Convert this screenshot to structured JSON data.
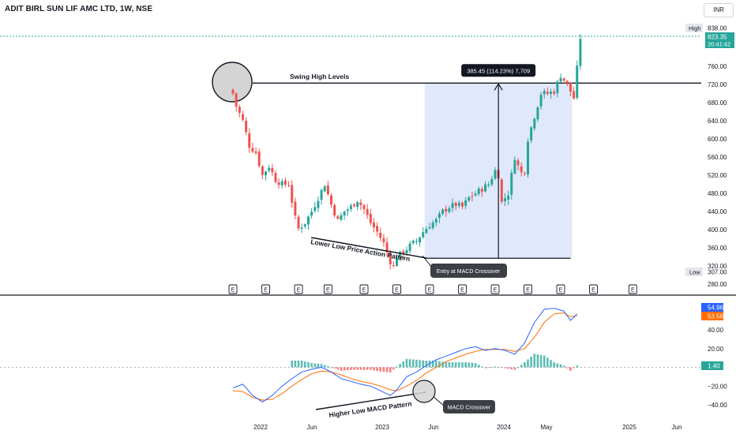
{
  "header": {
    "symbol_title": "ADIT BIRL SUN LIF AMC LTD, 1W, NSE",
    "currency": "INR"
  },
  "price_axis": {
    "ticks": [
      "760.00",
      "720.00",
      "680.00",
      "640.00",
      "600.00",
      "560.00",
      "520.00",
      "480.00",
      "440.00",
      "400.00",
      "360.00",
      "320.00",
      "280.00"
    ],
    "high_label": "High",
    "high_value": "838.00",
    "last_price": "823.35",
    "countdown": "20:41:42",
    "low_label": "Low",
    "low_value": "307.00"
  },
  "macd_axis": {
    "ticks": [
      "40.00",
      "20.00",
      "−20.00",
      "−40.00"
    ],
    "macd_value": "54.96",
    "signal_value": "53.56",
    "hist_value": "1.40"
  },
  "time_axis": [
    "2022",
    "Jun",
    "2023",
    "Jun",
    "2024",
    "May",
    "2025",
    "Jun"
  ],
  "annotations": {
    "swing_high": "Swing High Levels",
    "measure": "385.45 (114.23%) 7,709",
    "lower_low": "Lower Low Price Action Pattern",
    "entry": "Entry at MACD Crossover",
    "higher_low": "Higher Low MACD Pattern",
    "macd_cross": "MACD Crossover"
  },
  "events": [
    {
      "x_week": 0,
      "glyph": "E"
    },
    {
      "x_week": 10,
      "glyph": "E"
    },
    {
      "x_week": 20,
      "glyph": "E"
    },
    {
      "x_week": 29,
      "glyph": "E"
    },
    {
      "x_week": 40,
      "glyph": "E"
    },
    {
      "x_week": 50,
      "glyph": "E"
    },
    {
      "x_week": 60,
      "glyph": "E"
    },
    {
      "x_week": 70,
      "glyph": "E"
    },
    {
      "x_week": 80,
      "glyph": "E"
    },
    {
      "x_week": 90,
      "glyph": "E"
    },
    {
      "x_week": 100,
      "glyph": "E"
    },
    {
      "x_week": 110,
      "glyph": "E"
    },
    {
      "x_week": 122,
      "glyph": "E"
    }
  ],
  "colors": {
    "up": "#26a69a",
    "down": "#ef5350",
    "macd": "#2962ff",
    "signal": "#ff6d00",
    "measure_fill": "#dbe4fb",
    "level": "#131722"
  },
  "chart_data": [
    {
      "type": "candlestick",
      "title": "ADIT BIRL SUN LIF AMC LTD, 1W, NSE",
      "y_unit": "INR",
      "ylim": [
        280,
        840
      ],
      "x_range": [
        "2022",
        "2025 Jun"
      ],
      "swing_high_level": 723,
      "low_point": 307,
      "high_point": 838,
      "last_close": 823.35,
      "measurement": {
        "from": 337,
        "to": 723,
        "change": 385.45,
        "change_pct": 114.23
      },
      "close_path": [
        {
          "week": 0,
          "close": 700
        },
        {
          "week": 1,
          "close": 672
        },
        {
          "week": 3,
          "close": 640
        },
        {
          "week": 5,
          "close": 585
        },
        {
          "week": 7,
          "close": 570
        },
        {
          "week": 9,
          "close": 520
        },
        {
          "week": 11,
          "close": 540
        },
        {
          "week": 13,
          "close": 510
        },
        {
          "week": 15,
          "close": 500
        },
        {
          "week": 17,
          "close": 500
        },
        {
          "week": 19,
          "close": 425
        },
        {
          "week": 20,
          "close": 402
        },
        {
          "week": 22,
          "close": 415
        },
        {
          "week": 24,
          "close": 440
        },
        {
          "week": 26,
          "close": 470
        },
        {
          "week": 28,
          "close": 500
        },
        {
          "week": 30,
          "close": 455
        },
        {
          "week": 32,
          "close": 420
        },
        {
          "week": 34,
          "close": 440
        },
        {
          "week": 36,
          "close": 450
        },
        {
          "week": 38,
          "close": 465
        },
        {
          "week": 40,
          "close": 445
        },
        {
          "week": 42,
          "close": 415
        },
        {
          "week": 44,
          "close": 395
        },
        {
          "week": 46,
          "close": 370
        },
        {
          "week": 48,
          "close": 330
        },
        {
          "week": 49,
          "close": 318
        },
        {
          "week": 50,
          "close": 340
        },
        {
          "week": 52,
          "close": 350
        },
        {
          "week": 54,
          "close": 365
        },
        {
          "week": 56,
          "close": 375
        },
        {
          "week": 58,
          "close": 395
        },
        {
          "week": 60,
          "close": 410
        },
        {
          "week": 62,
          "close": 420
        },
        {
          "week": 64,
          "close": 440
        },
        {
          "week": 66,
          "close": 450
        },
        {
          "week": 68,
          "close": 455
        },
        {
          "week": 70,
          "close": 450
        },
        {
          "week": 72,
          "close": 470
        },
        {
          "week": 74,
          "close": 480
        },
        {
          "week": 76,
          "close": 490
        },
        {
          "week": 78,
          "close": 500
        },
        {
          "week": 80,
          "close": 530
        },
        {
          "week": 81,
          "close": 520
        },
        {
          "week": 82,
          "close": 460
        },
        {
          "week": 84,
          "close": 480
        },
        {
          "week": 86,
          "close": 560
        },
        {
          "week": 87,
          "close": 540
        },
        {
          "week": 88,
          "close": 525
        },
        {
          "week": 89,
          "close": 530
        },
        {
          "week": 90,
          "close": 600
        },
        {
          "week": 92,
          "close": 650
        },
        {
          "week": 94,
          "close": 700
        },
        {
          "week": 96,
          "close": 700
        },
        {
          "week": 98,
          "close": 705
        },
        {
          "week": 100,
          "close": 740
        },
        {
          "week": 102,
          "close": 720
        },
        {
          "week": 104,
          "close": 690
        },
        {
          "week": 105,
          "close": 755
        },
        {
          "week": 106,
          "close": 823
        }
      ]
    },
    {
      "type": "line",
      "title": "MACD",
      "ylim": [
        -50,
        70
      ],
      "series": [
        {
          "values": [
            {
              "week": 0,
              "value": -22
            },
            {
              "week": 3,
              "value": -18
            },
            {
              "week": 6,
              "value": -30
            },
            {
              "week": 9,
              "value": -37
            },
            {
              "week": 12,
              "value": -30
            },
            {
              "week": 15,
              "value": -20
            },
            {
              "week": 18,
              "value": -12
            },
            {
              "week": 21,
              "value": -5
            },
            {
              "week": 24,
              "value": -2
            },
            {
              "week": 27,
              "value": 0
            },
            {
              "week": 30,
              "value": -5
            },
            {
              "week": 33,
              "value": -12
            },
            {
              "week": 36,
              "value": -15
            },
            {
              "week": 39,
              "value": -18
            },
            {
              "week": 42,
              "value": -20
            },
            {
              "week": 45,
              "value": -25
            },
            {
              "week": 48,
              "value": -30
            },
            {
              "week": 50,
              "value": -24
            },
            {
              "week": 53,
              "value": -10
            },
            {
              "week": 56,
              "value": -5
            },
            {
              "week": 59,
              "value": 2
            },
            {
              "week": 62,
              "value": 8
            },
            {
              "week": 65,
              "value": 12
            },
            {
              "week": 68,
              "value": 16
            },
            {
              "week": 71,
              "value": 20
            },
            {
              "week": 74,
              "value": 22
            },
            {
              "week": 77,
              "value": 18
            },
            {
              "week": 80,
              "value": 20
            },
            {
              "week": 83,
              "value": 18
            },
            {
              "week": 86,
              "value": 14
            },
            {
              "week": 89,
              "value": 26
            },
            {
              "week": 92,
              "value": 48
            },
            {
              "week": 95,
              "value": 62
            },
            {
              "week": 98,
              "value": 63
            },
            {
              "week": 101,
              "value": 60
            },
            {
              "week": 103,
              "value": 50
            },
            {
              "week": 105,
              "value": 57
            }
          ]
        },
        {
          "values": [
            {
              "week": 0,
              "value": -25
            },
            {
              "week": 3,
              "value": -26
            },
            {
              "week": 6,
              "value": -32
            },
            {
              "week": 9,
              "value": -35
            },
            {
              "week": 12,
              "value": -34
            },
            {
              "week": 15,
              "value": -28
            },
            {
              "week": 18,
              "value": -20
            },
            {
              "week": 21,
              "value": -13
            },
            {
              "week": 24,
              "value": -7
            },
            {
              "week": 27,
              "value": -4
            },
            {
              "week": 30,
              "value": -5
            },
            {
              "week": 33,
              "value": -8
            },
            {
              "week": 36,
              "value": -12
            },
            {
              "week": 39,
              "value": -15
            },
            {
              "week": 42,
              "value": -17
            },
            {
              "week": 45,
              "value": -20
            },
            {
              "week": 48,
              "value": -24
            },
            {
              "week": 50,
              "value": -25
            },
            {
              "week": 53,
              "value": -20
            },
            {
              "week": 56,
              "value": -14
            },
            {
              "week": 59,
              "value": -6
            },
            {
              "week": 62,
              "value": 0
            },
            {
              "week": 65,
              "value": 6
            },
            {
              "week": 68,
              "value": 10
            },
            {
              "week": 71,
              "value": 14
            },
            {
              "week": 74,
              "value": 17
            },
            {
              "week": 77,
              "value": 19
            },
            {
              "week": 80,
              "value": 19
            },
            {
              "week": 83,
              "value": 19
            },
            {
              "week": 86,
              "value": 17
            },
            {
              "week": 89,
              "value": 20
            },
            {
              "week": 92,
              "value": 32
            },
            {
              "week": 95,
              "value": 48
            },
            {
              "week": 98,
              "value": 57
            },
            {
              "week": 101,
              "value": 58
            },
            {
              "week": 103,
              "value": 54
            },
            {
              "week": 105,
              "value": 55
            }
          ]
        }
      ],
      "histogram_note": "Histogram uses MACD minus signal for each week"
    }
  ]
}
